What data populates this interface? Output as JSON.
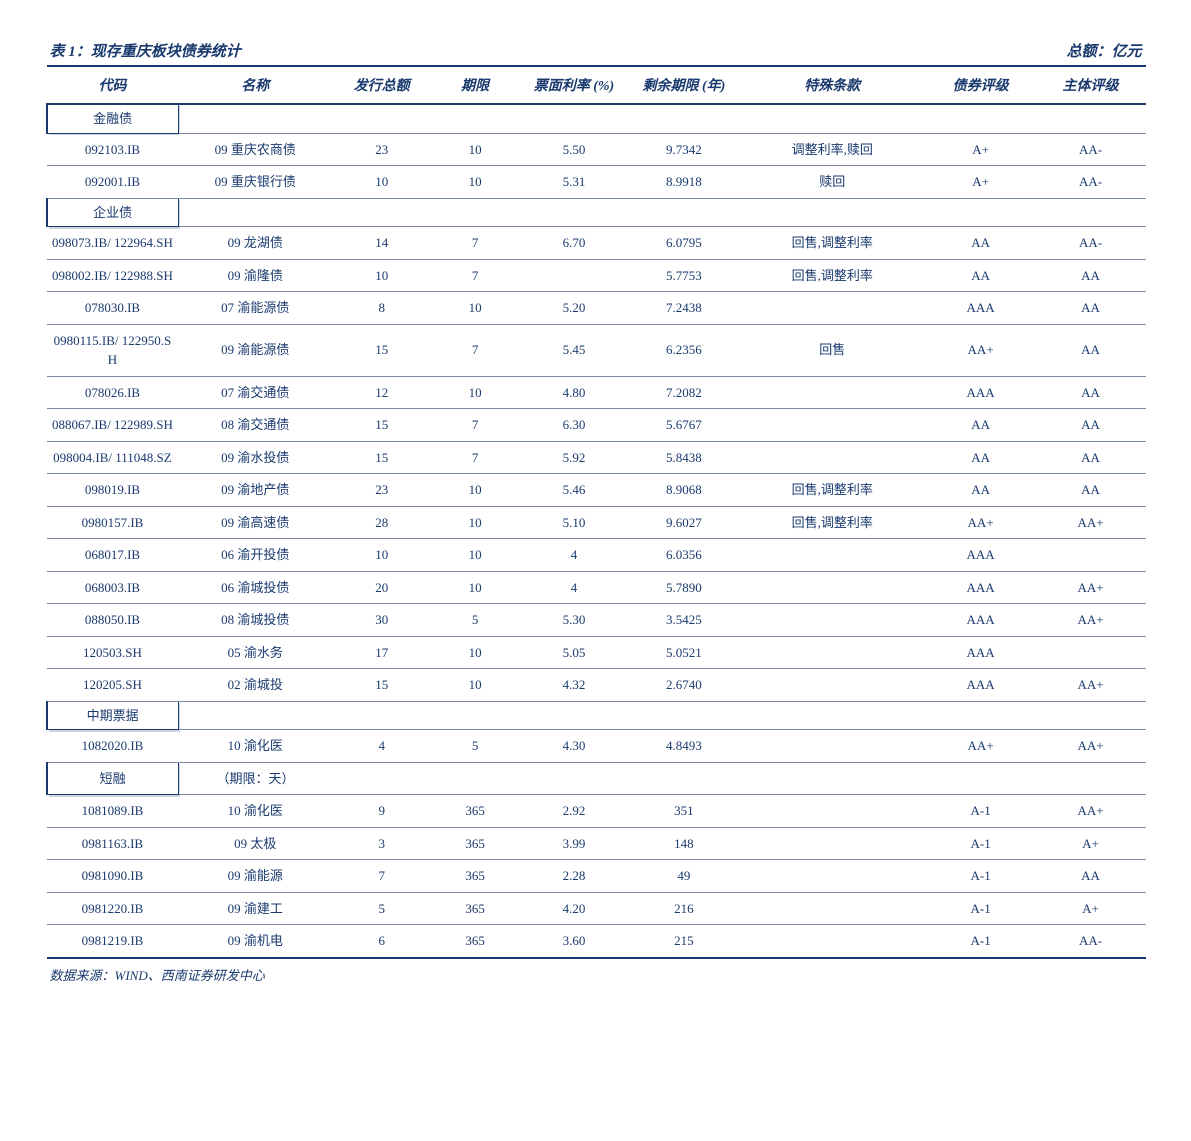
{
  "title_left": "表 1：现存重庆板块债券统计",
  "title_right": "总额：亿元",
  "columns": [
    "代码",
    "名称",
    "发行总额",
    "期限",
    "票面利率 (%)",
    "剩余期限 (年)",
    "特殊条款",
    "债券评级",
    "主体评级"
  ],
  "sections": [
    {
      "label": "金融债",
      "note": "",
      "rows": [
        [
          "092103.IB",
          "09 重庆农商债",
          "23",
          "10",
          "5.50",
          "9.7342",
          "调整利率,赎回",
          "A+",
          "AA-"
        ],
        [
          "092001.IB",
          "09 重庆银行债",
          "10",
          "10",
          "5.31",
          "8.9918",
          "赎回",
          "A+",
          "AA-"
        ]
      ]
    },
    {
      "label": "企业债",
      "note": "",
      "rows": [
        [
          "098073.IB/ 122964.SH",
          "09 龙湖债",
          "14",
          "7",
          "6.70",
          "6.0795",
          "回售,调整利率",
          "AA",
          "AA-"
        ],
        [
          "098002.IB/ 122988.SH",
          "09 渝隆债",
          "10",
          "7",
          "",
          "5.7753",
          "回售,调整利率",
          "AA",
          "AA"
        ],
        [
          "078030.IB",
          "07 渝能源债",
          "8",
          "10",
          "5.20",
          "7.2438",
          "",
          "AAA",
          "AA"
        ],
        [
          "0980115.IB/ 122950.SH",
          "09 渝能源债",
          "15",
          "7",
          "5.45",
          "6.2356",
          "回售",
          "AA+",
          "AA"
        ],
        [
          "078026.IB",
          "07 渝交通债",
          "12",
          "10",
          "4.80",
          "7.2082",
          "",
          "AAA",
          "AA"
        ],
        [
          "088067.IB/ 122989.SH",
          "08 渝交通债",
          "15",
          "7",
          "6.30",
          "5.6767",
          "",
          "AA",
          "AA"
        ],
        [
          "098004.IB/ 111048.SZ",
          "09 渝水投债",
          "15",
          "7",
          "5.92",
          "5.8438",
          "",
          "AA",
          "AA"
        ],
        [
          "098019.IB",
          "09 渝地产债",
          "23",
          "10",
          "5.46",
          "8.9068",
          "回售,调整利率",
          "AA",
          "AA"
        ],
        [
          "0980157.IB",
          "09 渝高速债",
          "28",
          "10",
          "5.10",
          "9.6027",
          "回售,调整利率",
          "AA+",
          "AA+"
        ],
        [
          "068017.IB",
          "06 渝开投债",
          "10",
          "10",
          "4",
          "6.0356",
          "",
          "AAA",
          ""
        ],
        [
          "068003.IB",
          "06 渝城投债",
          "20",
          "10",
          "4",
          "5.7890",
          "",
          "AAA",
          "AA+"
        ],
        [
          "088050.IB",
          "08 渝城投债",
          "30",
          "5",
          "5.30",
          "3.5425",
          "",
          "AAA",
          "AA+"
        ],
        [
          "120503.SH",
          "05 渝水务",
          "17",
          "10",
          "5.05",
          "5.0521",
          "",
          "AAA",
          ""
        ],
        [
          "120205.SH",
          "02 渝城投",
          "15",
          "10",
          "4.32",
          "2.6740",
          "",
          "AAA",
          "AA+"
        ]
      ]
    },
    {
      "label": "中期票据",
      "note": "",
      "rows": [
        [
          "1082020.IB",
          "10 渝化医",
          "4",
          "5",
          "4.30",
          "4.8493",
          "",
          "AA+",
          "AA+"
        ]
      ]
    },
    {
      "label": "短融",
      "note": "（期限：天）",
      "rows": [
        [
          "1081089.IB",
          "10 渝化医",
          "9",
          "365",
          "2.92",
          "351",
          "",
          "A-1",
          "AA+"
        ],
        [
          "0981163.IB",
          "09 太极",
          "3",
          "365",
          "3.99",
          "148",
          "",
          "A-1",
          "A+"
        ],
        [
          "0981090.IB",
          "09 渝能源",
          "7",
          "365",
          "2.28",
          "49",
          "",
          "A-1",
          "AA"
        ],
        [
          "0981220.IB",
          "09 渝建工",
          "5",
          "365",
          "4.20",
          "216",
          "",
          "A-1",
          "A+"
        ],
        [
          "0981219.IB",
          "09 渝机电",
          "6",
          "365",
          "3.60",
          "215",
          "",
          "A-1",
          "AA-"
        ]
      ]
    }
  ],
  "footer": "数据来源：WIND、西南证券研发中心",
  "colors": {
    "text": "#1a3a6e",
    "border_heavy": "#1a3a6e",
    "border_light": "#7a8aa8",
    "background": "#ffffff",
    "section_shadow": "#cdd5e3"
  },
  "typography": {
    "title_fontsize": 15,
    "header_fontsize": 14,
    "cell_fontsize": 13,
    "footer_fontsize": 13,
    "font_family": "SimSun",
    "italic_headers": true
  }
}
